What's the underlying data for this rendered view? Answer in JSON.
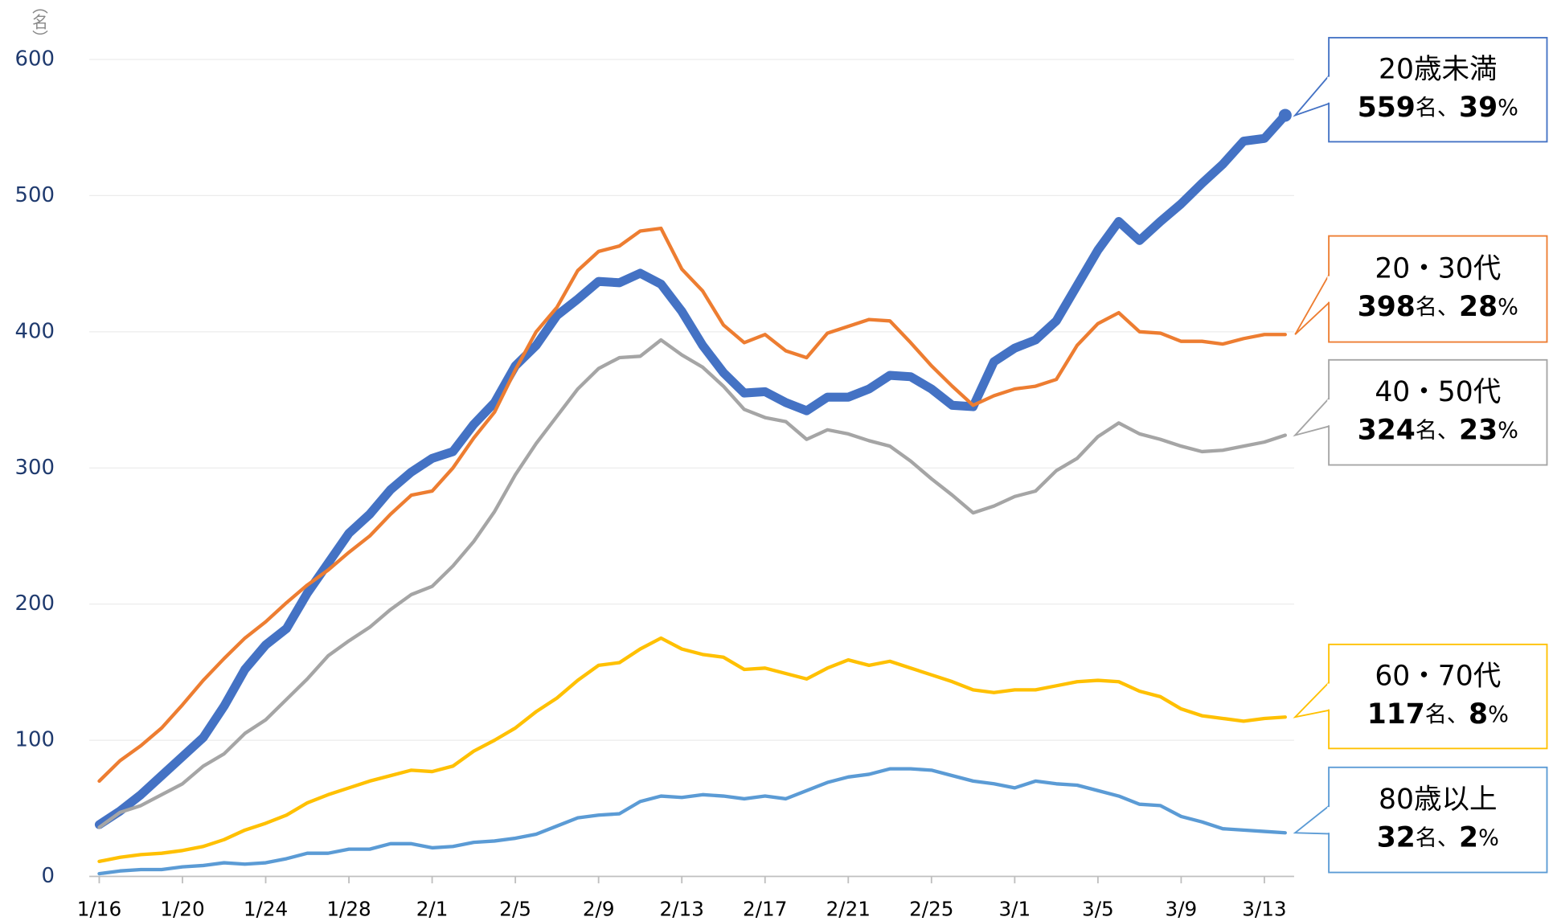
{
  "chart_data": {
    "type": "line",
    "ylabel": "（名）",
    "categories": [
      "1/16",
      null,
      null,
      null,
      "1/20",
      null,
      null,
      null,
      "1/24",
      null,
      null,
      null,
      "1/28",
      null,
      null,
      null,
      "2/1",
      null,
      null,
      null,
      "2/5",
      null,
      null,
      null,
      "2/9",
      null,
      null,
      null,
      "2/13",
      null,
      null,
      null,
      "2/17",
      null,
      null,
      null,
      "2/21",
      null,
      null,
      null,
      "2/25",
      null,
      null,
      null,
      "3/1",
      null,
      null,
      null,
      "3/5",
      null,
      null,
      null,
      "3/9",
      null,
      null,
      null,
      "3/13",
      null
    ],
    "ylim": [
      0,
      600
    ],
    "yticks": [
      0,
      100,
      200,
      300,
      400,
      500,
      600
    ],
    "grid": true,
    "callout_format": {
      "count_suffix": "名、",
      "share_suffix": "%"
    },
    "series": [
      {
        "name": "20歳未満",
        "color": "#4472c4",
        "width": 9,
        "marker": true,
        "share": 39,
        "values": [
          38,
          48,
          60,
          74,
          88,
          102,
          125,
          152,
          170,
          182,
          208,
          230,
          252,
          266,
          284,
          297,
          307,
          312,
          332,
          348,
          375,
          390,
          412,
          424,
          437,
          436,
          443,
          435,
          415,
          390,
          370,
          355,
          356,
          348,
          342,
          352,
          352,
          358,
          368,
          367,
          358,
          346,
          345,
          378,
          388,
          394,
          408,
          434,
          460,
          481,
          467,
          481,
          494,
          509,
          523,
          540,
          542,
          559
        ]
      },
      {
        "name": "20・30代",
        "color": "#ed7d31",
        "width": 3.5,
        "share": 28,
        "values": [
          70,
          85,
          96,
          109,
          126,
          144,
          160,
          175,
          187,
          201,
          214,
          225,
          238,
          250,
          266,
          280,
          283,
          300,
          322,
          341,
          372,
          400,
          418,
          445,
          459,
          463,
          474,
          476,
          446,
          430,
          405,
          392,
          398,
          386,
          381,
          399,
          404,
          409,
          408,
          392,
          375,
          360,
          346,
          353,
          358,
          360,
          365,
          390,
          406,
          414,
          400,
          399,
          393,
          393,
          391,
          395,
          398,
          398
        ]
      },
      {
        "name": "40・50代",
        "color": "#a5a5a5",
        "width": 3.5,
        "share": 23,
        "values": [
          36,
          47,
          52,
          60,
          68,
          81,
          90,
          105,
          115,
          130,
          145,
          162,
          173,
          183,
          196,
          207,
          213,
          228,
          246,
          268,
          295,
          318,
          338,
          358,
          373,
          381,
          382,
          394,
          383,
          374,
          360,
          343,
          337,
          334,
          321,
          328,
          325,
          320,
          316,
          305,
          292,
          280,
          267,
          272,
          279,
          283,
          298,
          307,
          323,
          333,
          325,
          321,
          316,
          312,
          313,
          316,
          319,
          324
        ]
      },
      {
        "name": "60・70代",
        "color": "#ffc000",
        "width": 3.5,
        "share": 8,
        "values": [
          11,
          14,
          16,
          17,
          19,
          22,
          27,
          34,
          39,
          45,
          54,
          60,
          65,
          70,
          74,
          78,
          77,
          81,
          92,
          100,
          109,
          121,
          131,
          144,
          155,
          157,
          167,
          175,
          167,
          163,
          161,
          152,
          153,
          149,
          145,
          153,
          159,
          155,
          158,
          153,
          148,
          143,
          137,
          135,
          137,
          137,
          140,
          143,
          144,
          143,
          136,
          132,
          123,
          118,
          116,
          114,
          116,
          117
        ]
      },
      {
        "name": "80歳以上",
        "color": "#5b9bd5",
        "width": 3.5,
        "share": 2,
        "values": [
          2,
          4,
          5,
          5,
          7,
          8,
          10,
          9,
          10,
          13,
          17,
          17,
          20,
          20,
          24,
          24,
          21,
          22,
          25,
          26,
          28,
          31,
          37,
          43,
          45,
          46,
          55,
          59,
          58,
          60,
          59,
          57,
          59,
          57,
          63,
          69,
          73,
          75,
          79,
          79,
          78,
          74,
          70,
          68,
          65,
          70,
          68,
          67,
          63,
          59,
          53,
          52,
          44,
          40,
          35,
          34,
          33,
          32
        ]
      }
    ]
  }
}
